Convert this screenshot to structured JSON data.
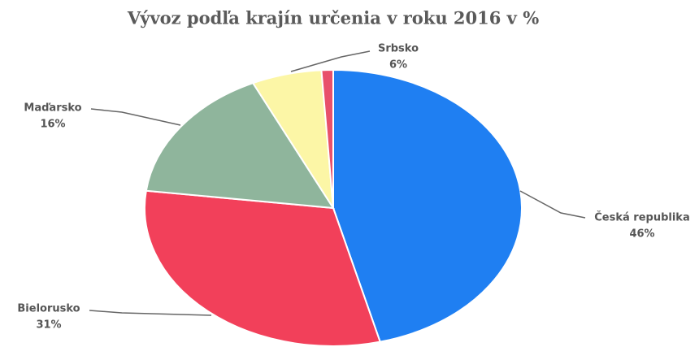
{
  "chart_data": {
    "type": "pie",
    "title": "Vývoz podľa krajín určenia v roku 2016 v %",
    "categories": [
      "Česká republika",
      "Bielorusko",
      "Maďarsko",
      "Srbsko",
      null
    ],
    "values": [
      46,
      31,
      16,
      6,
      1
    ],
    "value_labels": [
      "46%",
      "31%",
      "16%",
      "6%",
      null
    ],
    "colors": [
      "#1f7ff2",
      "#f2405a",
      "#8fb59c",
      "#fcf6a6",
      "#e8506a"
    ]
  }
}
